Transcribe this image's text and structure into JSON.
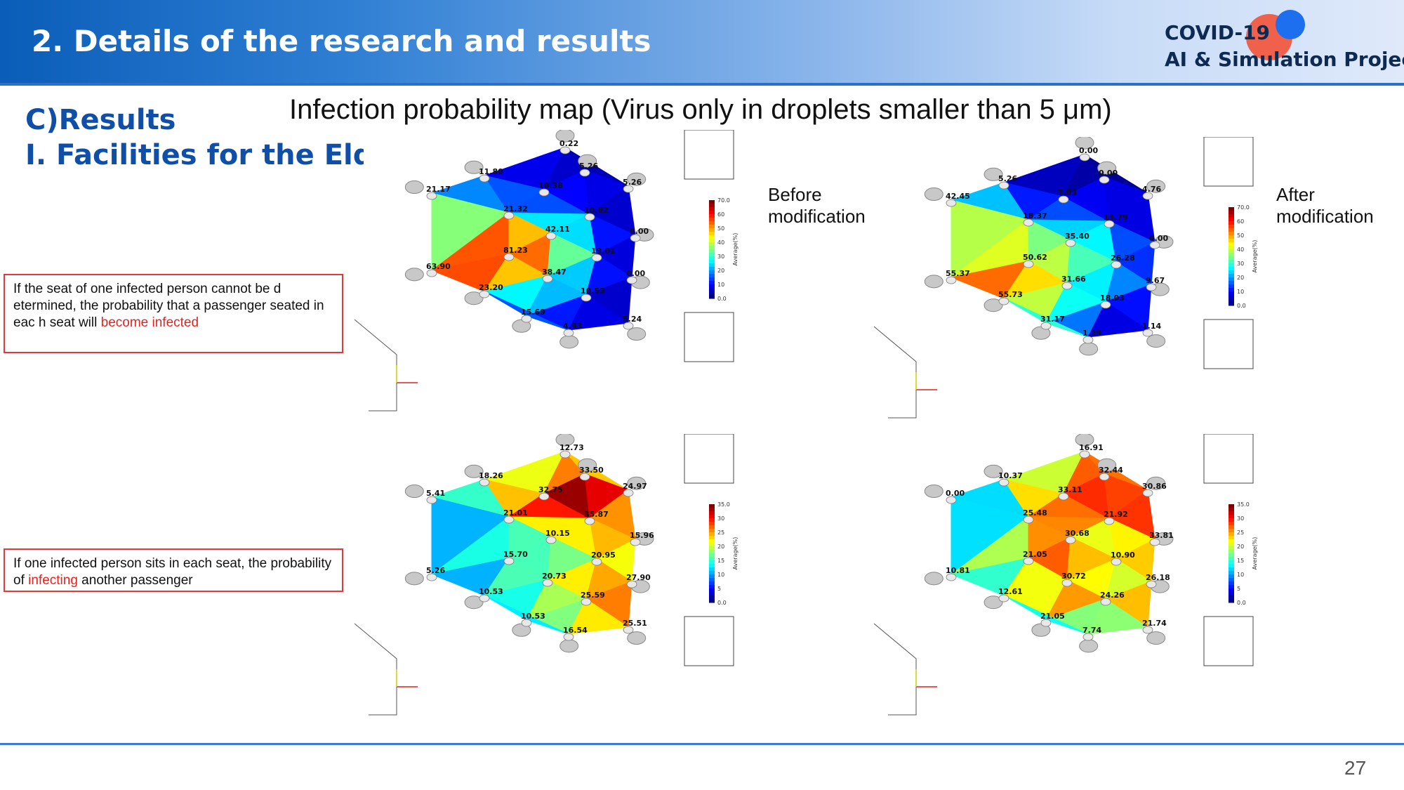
{
  "header": {
    "title": "2. Details of the research and results",
    "logo_line1": "COVID-19",
    "logo_line2": "AI & Simulation Project"
  },
  "section": {
    "heading_a": "C)Results",
    "heading_b": "I. Facilities for the Elderly"
  },
  "map_title": "Infection probability map (Virus only in droplets smaller than 5 μm)",
  "notes": {
    "top_pre": "If the seat of one infected person cannot be d etermined, the probability that a passenger seated in eac h seat will ",
    "top_red": "become infected",
    "bottom_pre": "If one infected person sits in each seat, the probability of ",
    "bottom_red": "infecting",
    "bottom_post": " another passenger"
  },
  "labels": {
    "before": "Before\nmodification",
    "after": "After\nmodification"
  },
  "colorbar": {
    "title": "Average(%)",
    "ticks_top": [
      "70.0",
      "60",
      "50",
      "40",
      "30",
      "20",
      "10",
      "0.0"
    ],
    "ticks_bottom": [
      "35.0",
      "30",
      "25",
      "20",
      "15",
      "10",
      "5",
      "0.0"
    ]
  },
  "panels": {
    "top_left": [
      "0.22",
      "11.80",
      "5.26",
      "10.38",
      "5.26",
      "21.17",
      "21.32",
      "10.82",
      "42.11",
      "0.00",
      "81.23",
      "19.01",
      "63.90",
      "38.47",
      "0.00",
      "23.20",
      "10.53",
      "15.69",
      "5.24",
      "4.93"
    ],
    "top_right": [
      "0.00",
      "5.26",
      "0.00",
      "7.83",
      "4.76",
      "42.45",
      "18.37",
      "15.79",
      "35.40",
      "0.00",
      "50.62",
      "26.28",
      "55.37",
      "31.66",
      "9.67",
      "55.73",
      "18.03",
      "31.17",
      "1.14",
      "1.29"
    ],
    "bottom_left": [
      "12.73",
      "18.26",
      "33.50",
      "32.75",
      "24.97",
      "5.41",
      "21.01",
      "35.87",
      "10.15",
      "15.96",
      "15.70",
      "20.95",
      "5.26",
      "20.73",
      "27.90",
      "10.53",
      "25.59",
      "10.53",
      "25.51",
      "16.54"
    ],
    "bottom_right": [
      "16.91",
      "10.37",
      "32.44",
      "33.11",
      "30.86",
      "0.00",
      "25.48",
      "21.92",
      "30.68",
      "33.81",
      "21.05",
      "10.90",
      "10.81",
      "30.72",
      "26.18",
      "12.61",
      "24.26",
      "21.05",
      "21.74",
      "7.74"
    ]
  },
  "page_number": "27"
}
